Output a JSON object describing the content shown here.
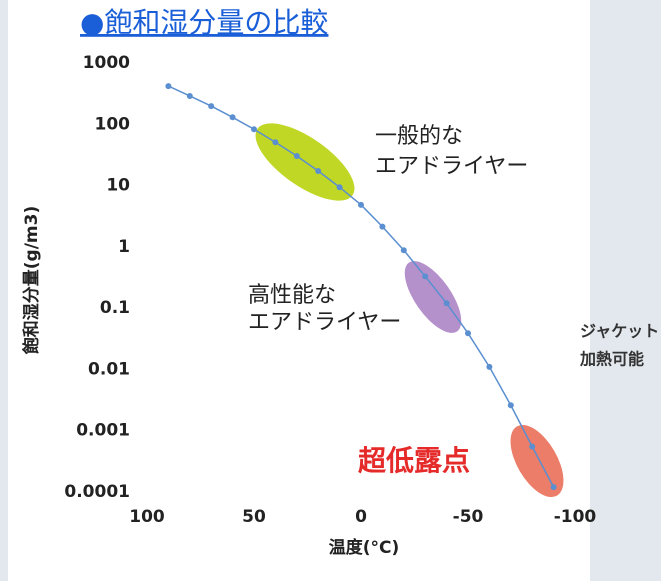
{
  "chart_data": {
    "type": "line",
    "title": "●飽和湿分量の比較",
    "x_label": "温度(°C)",
    "y_label": "飽和湿分量(g/m3)",
    "x": [
      90,
      80,
      70,
      60,
      50,
      40,
      30,
      20,
      10,
      0,
      -10,
      -20,
      -30,
      -40,
      -50,
      -60,
      -70,
      -80,
      -90
    ],
    "series": [
      {
        "name": "飽和湿分量",
        "color": "#5b8fd0",
        "values": [
          420,
          290,
          198,
          130,
          83,
          51,
          30.4,
          17.3,
          9.4,
          4.85,
          2.14,
          0.88,
          0.33,
          0.12,
          0.039,
          0.011,
          0.0026,
          0.00055,
          0.00012
        ]
      }
    ],
    "xlim": [
      100,
      -100
    ],
    "xticks": [
      100,
      50,
      0,
      -50,
      -100
    ],
    "ylim": [
      0.0001,
      1000
    ],
    "yticks": [
      1000,
      100,
      10,
      1,
      0.1,
      0.01,
      0.001,
      0.0001
    ],
    "log_y": true,
    "annotations": {
      "general_1": "一般的な",
      "general_2": "エアドライヤー",
      "high_1": "高性能な",
      "high_2": "エアドライヤー",
      "ultra": "超低露点",
      "side_1": "ジャケット",
      "side_2": "加熱可能"
    }
  }
}
